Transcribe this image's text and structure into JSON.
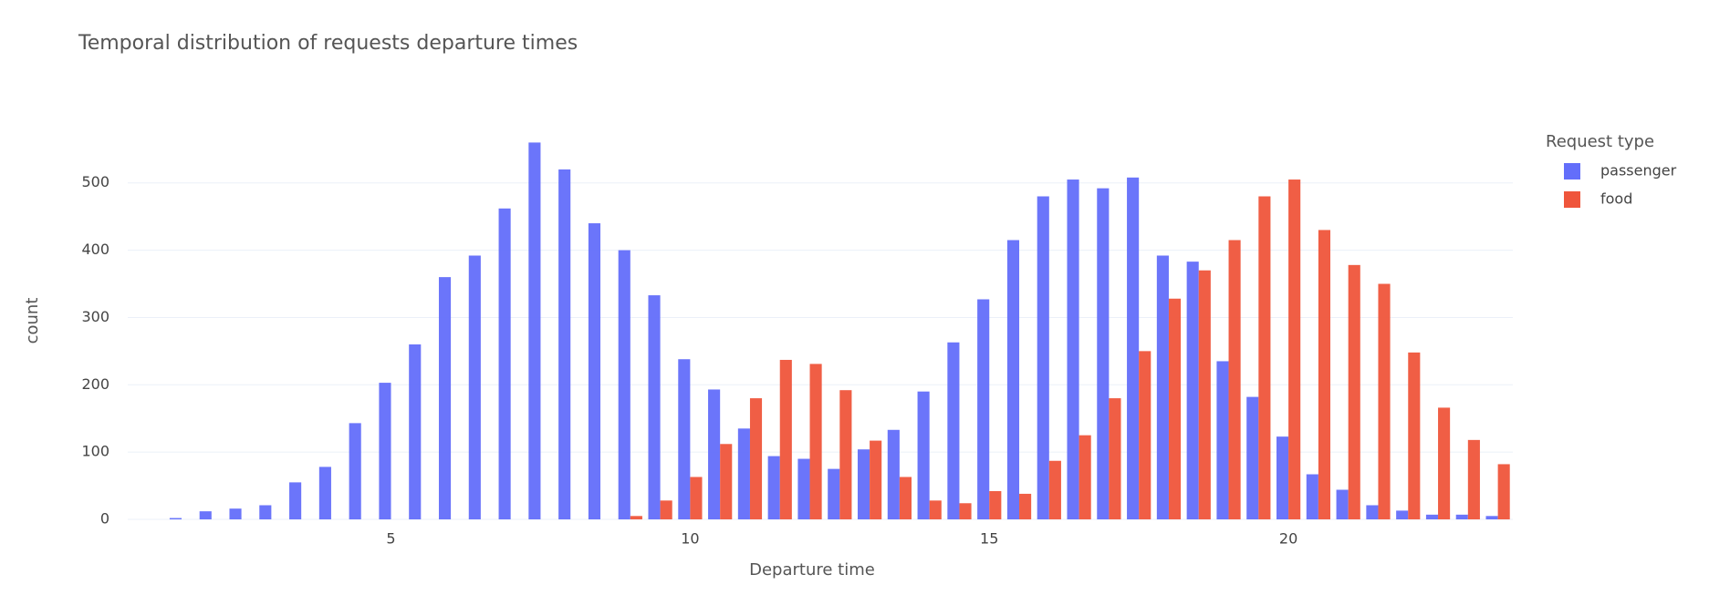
{
  "chart_data": {
    "type": "histogram",
    "title": "Temporal distribution of requests departure times",
    "x_label": "Departure time",
    "y_label": "count",
    "legend_title": "Request type",
    "legend_position": "right",
    "bins": [
      0.75,
      1.25,
      1.75,
      2.25,
      2.75,
      3.25,
      3.75,
      4.25,
      4.75,
      5.25,
      5.75,
      6.25,
      6.75,
      7.25,
      7.75,
      8.25,
      8.75,
      9.25,
      9.75,
      10.25,
      10.75,
      11.25,
      11.75,
      12.25,
      12.75,
      13.25,
      13.75,
      14.25,
      14.75,
      15.25,
      15.75,
      16.25,
      16.75,
      17.25,
      17.75,
      18.25,
      18.75,
      19.25,
      19.75,
      20.25,
      20.75,
      21.25,
      21.75,
      22.25,
      22.75,
      23.25,
      23.75
    ],
    "series": [
      {
        "name": "passenger",
        "color": "#636efa",
        "values": [
          0,
          2,
          12,
          16,
          21,
          55,
          78,
          143,
          203,
          260,
          360,
          392,
          462,
          560,
          520,
          440,
          400,
          333,
          238,
          193,
          135,
          94,
          90,
          75,
          104,
          133,
          190,
          263,
          327,
          415,
          480,
          505,
          492,
          508,
          392,
          383,
          235,
          182,
          123,
          67,
          44,
          21,
          13,
          7,
          7,
          5
        ]
      },
      {
        "name": "food",
        "color": "#ef553b",
        "values": [
          0,
          0,
          0,
          0,
          0,
          0,
          0,
          0,
          0,
          0,
          0,
          0,
          0,
          0,
          0,
          0,
          5,
          28,
          63,
          112,
          180,
          237,
          231,
          192,
          117,
          63,
          28,
          24,
          42,
          38,
          87,
          125,
          180,
          250,
          328,
          370,
          415,
          480,
          505,
          430,
          378,
          350,
          248,
          166,
          118,
          82
        ]
      }
    ],
    "xlim": [
      0.6,
      23.75
    ],
    "xticks": [
      5,
      10,
      15,
      20
    ],
    "ylim": [
      0,
      589
    ],
    "yticks": [
      0,
      100,
      200,
      300,
      400,
      500
    ],
    "grid": true
  }
}
